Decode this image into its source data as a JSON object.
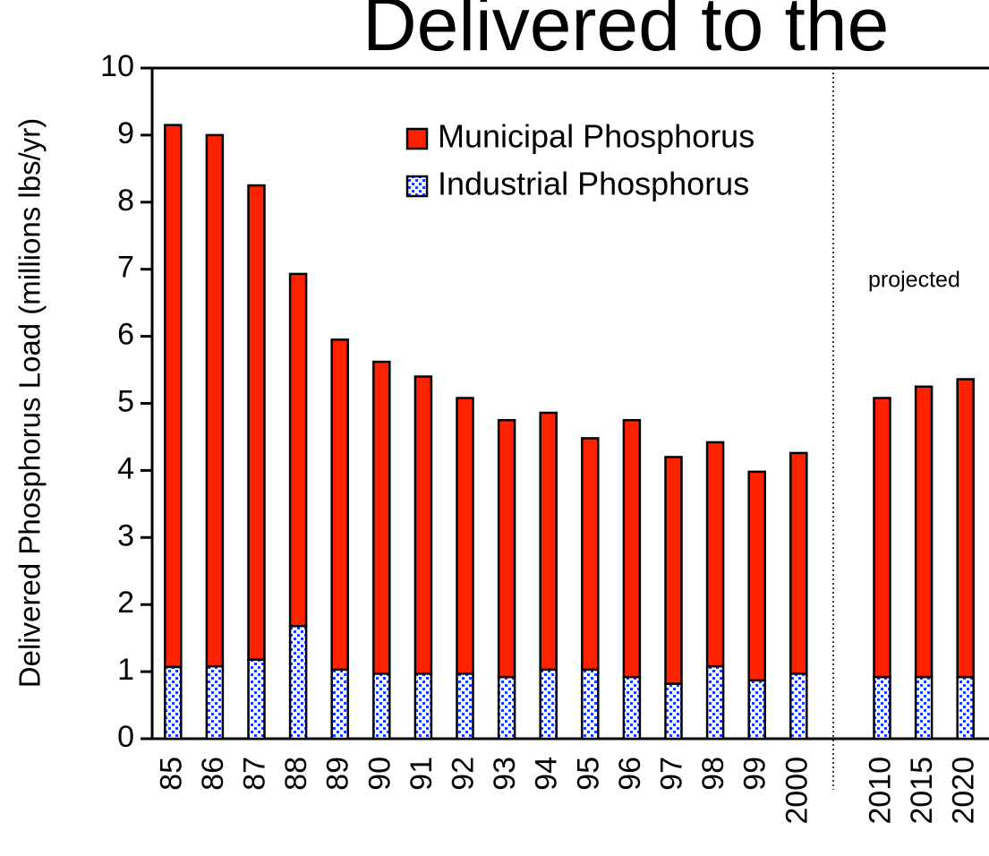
{
  "chart_data": {
    "type": "stacked_bar",
    "title": "Delivered to the",
    "y_label": "Delivered Phosphorus Load (millions lbs/yr)",
    "annotation": "projected",
    "categories": [
      "85",
      "86",
      "87",
      "88",
      "89",
      "90",
      "91",
      "92",
      "93",
      "94",
      "95",
      "96",
      "97",
      "98",
      "99",
      "2000",
      null,
      "2010",
      "2015",
      "2020"
    ],
    "series": [
      {
        "name": "Industrial Phosphorus",
        "color": "#1a3cff",
        "pattern": "checker",
        "values": [
          1.07,
          1.08,
          1.18,
          1.68,
          1.03,
          0.97,
          0.97,
          0.97,
          0.92,
          1.03,
          1.03,
          0.92,
          0.82,
          1.08,
          0.87,
          0.97,
          null,
          0.92,
          0.92,
          0.92
        ]
      },
      {
        "name": "Municipal Phosphorus",
        "color": "#ff2200",
        "values": [
          8.08,
          7.92,
          7.07,
          5.25,
          4.92,
          4.65,
          4.43,
          4.11,
          3.83,
          3.83,
          3.45,
          3.83,
          3.38,
          3.34,
          3.11,
          3.29,
          null,
          4.16,
          4.33,
          4.44
        ]
      }
    ],
    "ylim": [
      0,
      10
    ],
    "yticks": [
      0,
      1,
      2,
      3,
      4,
      5,
      6,
      7,
      8,
      9,
      10
    ],
    "grid": false
  }
}
